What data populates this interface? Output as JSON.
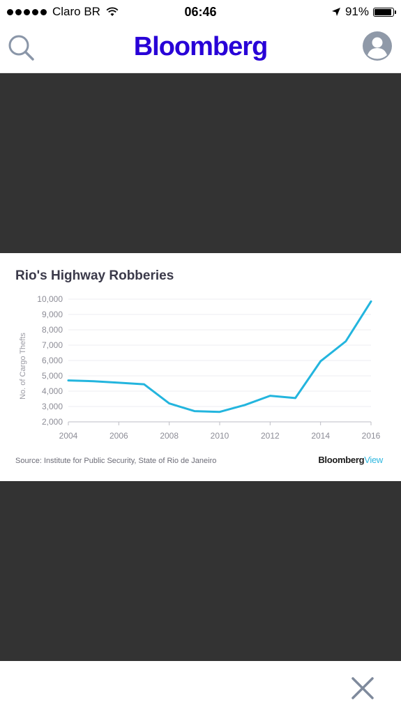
{
  "status_bar": {
    "carrier": "Claro BR",
    "time": "06:46",
    "battery_percent": "91%",
    "battery_level": 0.91
  },
  "header": {
    "brand": "Bloomberg",
    "brand_color": "#2800d7",
    "search_icon": "search-icon",
    "account_icon": "account-icon"
  },
  "chart": {
    "title": "Rio's Highway Robberies",
    "source": "Source: Institute for Public Security, State of Rio de Janeiro",
    "brand_main": "Bloomberg",
    "brand_sub": "View"
  },
  "chart_data": {
    "type": "line",
    "title": "Rio's Highway Robberies",
    "xlabel": "",
    "ylabel": "No. of Cargo Thefts",
    "x": [
      2004,
      2005,
      2006,
      2007,
      2008,
      2009,
      2010,
      2011,
      2012,
      2013,
      2014,
      2015,
      2016
    ],
    "series": [
      {
        "values": [
          4700,
          4650,
          4550,
          4450,
          3200,
          2700,
          2650,
          3100,
          3700,
          3550,
          5950,
          7250,
          9850
        ]
      }
    ],
    "xticks": [
      "2004",
      "2006",
      "2008",
      "2010",
      "2012",
      "2014",
      "2016"
    ],
    "yticks": [
      "2,000",
      "3,000",
      "4,000",
      "5,000",
      "6,000",
      "7,000",
      "8,000",
      "9,000",
      "10,000"
    ],
    "xlim": [
      2004,
      2016
    ],
    "ylim": [
      2000,
      10000
    ],
    "grid": true,
    "line_color": "#23b5de"
  },
  "bottom_bar": {
    "close_icon": "close-icon"
  }
}
